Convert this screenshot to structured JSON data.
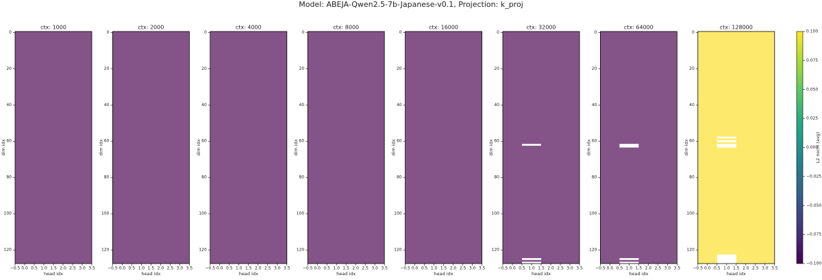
{
  "title": "Model: ABEJA-Qwen2.5-7b-Japanese-v0.1, Projection: k_proj",
  "chart_data": [
    {
      "type": "heatmap",
      "title": "ctx: 1000",
      "xlabel": "head idx",
      "ylabel": "dim idx",
      "color": "#845488",
      "xlim": [
        -0.5,
        3.5
      ],
      "ylim": [
        127.5,
        -0.5
      ],
      "xticks": [
        {
          "value": -0.5,
          "label": "−0.5"
        },
        {
          "value": 0,
          "label": "0.0"
        },
        {
          "value": 0.5,
          "label": "0.5"
        },
        {
          "value": 1,
          "label": "1.0"
        },
        {
          "value": 1.5,
          "label": "1.5"
        },
        {
          "value": 2,
          "label": "2.0"
        },
        {
          "value": 2.5,
          "label": "2.5"
        },
        {
          "value": 3,
          "label": "3.0"
        },
        {
          "value": 3.5,
          "label": "3.5"
        }
      ],
      "yticks": [
        0,
        20,
        40,
        60,
        80,
        100,
        120
      ],
      "masked": []
    },
    {
      "type": "heatmap",
      "title": "ctx: 2000",
      "xlabel": "head idx",
      "ylabel": "dim idx",
      "color": "#845488",
      "xlim": [
        -0.5,
        3.5
      ],
      "ylim": [
        127.5,
        -0.5
      ],
      "xticks": [
        {
          "value": -0.5,
          "label": "−0.5"
        },
        {
          "value": 0,
          "label": "0.0"
        },
        {
          "value": 0.5,
          "label": "0.5"
        },
        {
          "value": 1,
          "label": "1.0"
        },
        {
          "value": 1.5,
          "label": "1.5"
        },
        {
          "value": 2,
          "label": "2.0"
        },
        {
          "value": 2.5,
          "label": "2.5"
        },
        {
          "value": 3,
          "label": "3.0"
        },
        {
          "value": 3.5,
          "label": "3.5"
        }
      ],
      "yticks": [
        0,
        20,
        40,
        60,
        80,
        100,
        120
      ],
      "masked": []
    },
    {
      "type": "heatmap",
      "title": "ctx: 4000",
      "xlabel": "head idx",
      "ylabel": "dim idx",
      "color": "#845488",
      "xlim": [
        -0.5,
        3.5
      ],
      "ylim": [
        127.5,
        -0.5
      ],
      "xticks": [
        {
          "value": -0.5,
          "label": "−0.5"
        },
        {
          "value": 0,
          "label": "0.0"
        },
        {
          "value": 0.5,
          "label": "0.5"
        },
        {
          "value": 1,
          "label": "1.0"
        },
        {
          "value": 1.5,
          "label": "1.5"
        },
        {
          "value": 2,
          "label": "2.0"
        },
        {
          "value": 2.5,
          "label": "2.5"
        },
        {
          "value": 3,
          "label": "3.0"
        },
        {
          "value": 3.5,
          "label": "3.5"
        }
      ],
      "yticks": [
        0,
        20,
        40,
        60,
        80,
        100,
        120
      ],
      "masked": []
    },
    {
      "type": "heatmap",
      "title": "ctx: 8000",
      "xlabel": "head idx",
      "ylabel": "dim idx",
      "color": "#845488",
      "xlim": [
        -0.5,
        3.5
      ],
      "ylim": [
        127.5,
        -0.5
      ],
      "xticks": [
        {
          "value": -0.5,
          "label": "−0.5"
        },
        {
          "value": 0,
          "label": "0.0"
        },
        {
          "value": 0.5,
          "label": "0.5"
        },
        {
          "value": 1,
          "label": "1.0"
        },
        {
          "value": 1.5,
          "label": "1.5"
        },
        {
          "value": 2,
          "label": "2.0"
        },
        {
          "value": 2.5,
          "label": "2.5"
        },
        {
          "value": 3,
          "label": "3.0"
        },
        {
          "value": 3.5,
          "label": "3.5"
        }
      ],
      "yticks": [
        0,
        20,
        40,
        60,
        80,
        100,
        120
      ],
      "masked": []
    },
    {
      "type": "heatmap",
      "title": "ctx: 16000",
      "xlabel": "head idx",
      "ylabel": "dim idx",
      "color": "#845488",
      "xlim": [
        -0.5,
        3.5
      ],
      "ylim": [
        127.5,
        -0.5
      ],
      "xticks": [
        {
          "value": -0.5,
          "label": "−0.5"
        },
        {
          "value": 0,
          "label": "0.0"
        },
        {
          "value": 0.5,
          "label": "0.5"
        },
        {
          "value": 1,
          "label": "1.0"
        },
        {
          "value": 1.5,
          "label": "1.5"
        },
        {
          "value": 2,
          "label": "2.0"
        },
        {
          "value": 2.5,
          "label": "2.5"
        },
        {
          "value": 3,
          "label": "3.0"
        },
        {
          "value": 3.5,
          "label": "3.5"
        }
      ],
      "yticks": [
        0,
        20,
        40,
        60,
        80,
        100,
        120
      ],
      "masked": []
    },
    {
      "type": "heatmap",
      "title": "ctx: 32000",
      "xlabel": "head idx",
      "ylabel": "dim idx",
      "color": "#845488",
      "xlim": [
        -0.5,
        3.5
      ],
      "ylim": [
        127.5,
        -0.5
      ],
      "xticks": [
        {
          "value": -0.5,
          "label": "−0.5"
        },
        {
          "value": 0,
          "label": "0.0"
        },
        {
          "value": 0.5,
          "label": "0.5"
        },
        {
          "value": 1,
          "label": "1.0"
        },
        {
          "value": 1.5,
          "label": "1.5"
        },
        {
          "value": 2,
          "label": "2.0"
        },
        {
          "value": 2.5,
          "label": "2.5"
        },
        {
          "value": 3,
          "label": "3.0"
        },
        {
          "value": 3.5,
          "label": "3.5"
        }
      ],
      "yticks": [
        0,
        20,
        40,
        60,
        80,
        100,
        120
      ],
      "masked": [
        [
          0.5,
          1.5,
          61.5,
          62.5
        ],
        [
          0.5,
          1.5,
          124.5,
          125.5
        ],
        [
          0.5,
          1.5,
          126.5,
          127.5
        ]
      ]
    },
    {
      "type": "heatmap",
      "title": "ctx: 64000",
      "xlabel": "head idx",
      "ylabel": "dim idx",
      "color": "#845488",
      "xlim": [
        -0.5,
        3.5
      ],
      "ylim": [
        127.5,
        -0.5
      ],
      "xticks": [
        {
          "value": -0.5,
          "label": "−0.5"
        },
        {
          "value": 0,
          "label": "0.0"
        },
        {
          "value": 0.5,
          "label": "0.5"
        },
        {
          "value": 1,
          "label": "1.0"
        },
        {
          "value": 1.5,
          "label": "1.5"
        },
        {
          "value": 2,
          "label": "2.0"
        },
        {
          "value": 2.5,
          "label": "2.5"
        },
        {
          "value": 3,
          "label": "3.0"
        },
        {
          "value": 3.5,
          "label": "3.5"
        }
      ],
      "yticks": [
        0,
        20,
        40,
        60,
        80,
        100,
        120
      ],
      "masked": [
        [
          0.5,
          1.5,
          61.5,
          63.5
        ],
        [
          0.5,
          1.5,
          124.5,
          125.5
        ],
        [
          0.5,
          1.5,
          126.5,
          127.5
        ]
      ]
    },
    {
      "type": "heatmap",
      "title": "ctx: 128000",
      "xlabel": "head idx",
      "ylabel": "dim idx",
      "color": "#fde96b",
      "xlim": [
        -0.5,
        3.5
      ],
      "ylim": [
        127.5,
        -0.5
      ],
      "xticks": [
        {
          "value": -0.5,
          "label": "−0.5"
        },
        {
          "value": 0,
          "label": "0.0"
        },
        {
          "value": 0.5,
          "label": "0.5"
        },
        {
          "value": 1,
          "label": "1.0"
        },
        {
          "value": 1.5,
          "label": "1.5"
        },
        {
          "value": 2,
          "label": "2.0"
        },
        {
          "value": 2.5,
          "label": "2.5"
        },
        {
          "value": 3,
          "label": "3.0"
        },
        {
          "value": 3.5,
          "label": "3.5"
        }
      ],
      "yticks": [
        0,
        20,
        40,
        60,
        80,
        100,
        120
      ],
      "masked": [
        [
          0.5,
          1.5,
          57.5,
          58.5
        ],
        [
          0.5,
          1.5,
          59.5,
          60.5
        ],
        [
          0.5,
          1.5,
          61.5,
          63.5
        ],
        [
          0.5,
          1.5,
          122.5,
          127.5
        ]
      ]
    }
  ],
  "colorbar": {
    "label": "L2 norm (avg)",
    "ylim": [
      -0.1,
      0.1
    ],
    "yticks": [
      {
        "value": -0.1,
        "label": "−0.100"
      },
      {
        "value": -0.075,
        "label": "−0.075"
      },
      {
        "value": -0.05,
        "label": "−0.050"
      },
      {
        "value": -0.025,
        "label": "−0.025"
      },
      {
        "value": 0,
        "label": "0.000"
      },
      {
        "value": 0.025,
        "label": "0.025"
      },
      {
        "value": 0.05,
        "label": "0.050"
      },
      {
        "value": 0.075,
        "label": "0.075"
      },
      {
        "value": 0.1,
        "label": "0.100"
      }
    ]
  }
}
